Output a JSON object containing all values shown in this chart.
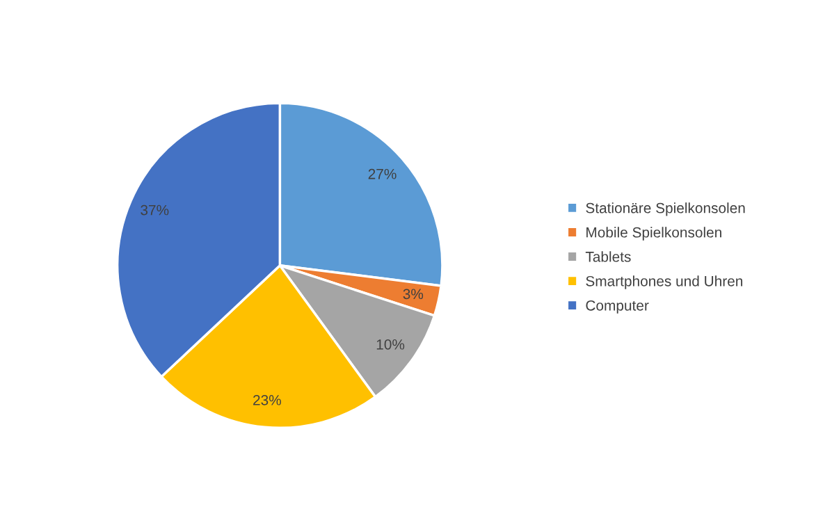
{
  "chart_data": {
    "type": "pie",
    "categories": [
      "Stationäre Spielkonsolen",
      "Mobile Spielkonsolen",
      "Tablets",
      "Smartphones und Uhren",
      "Computer"
    ],
    "values": [
      27,
      3,
      10,
      23,
      37
    ],
    "colors": [
      "#5b9bd5",
      "#ed7d31",
      "#a5a5a5",
      "#ffc000",
      "#4472c4"
    ],
    "value_labels": [
      "27%",
      "3%",
      "10%",
      "23%",
      "37%"
    ],
    "legend": "right"
  }
}
